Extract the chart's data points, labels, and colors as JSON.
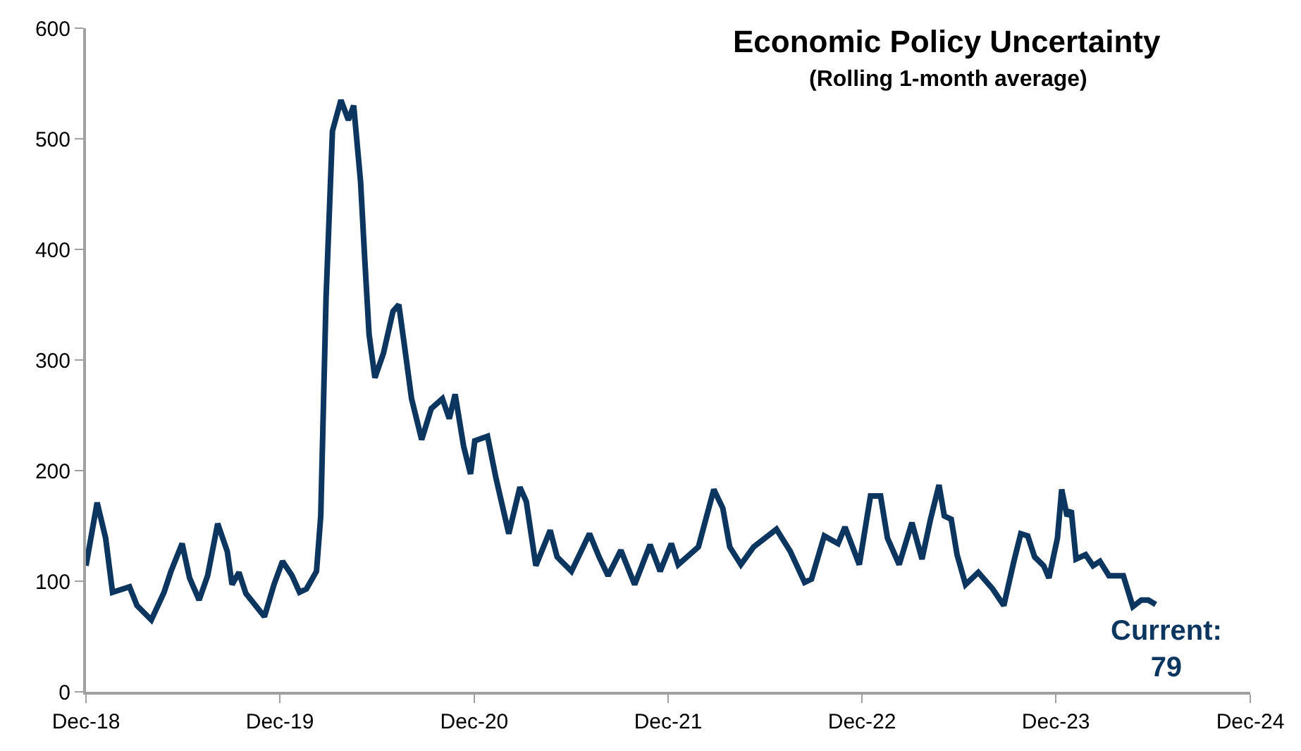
{
  "chart_data": {
    "type": "line",
    "title": "Economic Policy Uncertainty",
    "subtitle": "(Rolling 1-month average)",
    "x": [
      "2018-12-01",
      "2018-12-22",
      "2019-01-07",
      "2019-01-20",
      "2019-02-21",
      "2019-03-07",
      "2019-04-03",
      "2019-04-27",
      "2019-05-10",
      "2019-05-31",
      "2019-06-14",
      "2019-07-02",
      "2019-07-18",
      "2019-08-06",
      "2019-08-24",
      "2019-09-02",
      "2019-09-15",
      "2019-09-28",
      "2019-11-02",
      "2019-11-20",
      "2019-12-06",
      "2019-12-24",
      "2020-01-07",
      "2020-01-20",
      "2020-02-08",
      "2020-02-16",
      "2020-02-26",
      "2020-03-09",
      "2020-03-25",
      "2020-04-08",
      "2020-04-18",
      "2020-05-01",
      "2020-05-09",
      "2020-05-17",
      "2020-05-28",
      "2020-06-13",
      "2020-07-01",
      "2020-07-12",
      "2020-07-22",
      "2020-08-05",
      "2020-08-24",
      "2020-09-11",
      "2020-10-02",
      "2020-10-15",
      "2020-10-26",
      "2020-11-11",
      "2020-11-24",
      "2020-12-02",
      "2020-12-26",
      "2021-01-11",
      "2021-02-04",
      "2021-02-25",
      "2021-03-09",
      "2021-03-27",
      "2021-04-23",
      "2021-05-06",
      "2021-06-02",
      "2021-07-06",
      "2021-07-24",
      "2021-08-10",
      "2021-09-03",
      "2021-09-29",
      "2021-10-28",
      "2021-11-16",
      "2021-12-07",
      "2021-12-20",
      "2022-01-27",
      "2022-02-25",
      "2022-03-14",
      "2022-03-27",
      "2022-04-17",
      "2022-05-11",
      "2022-06-23",
      "2022-07-19",
      "2022-08-15",
      "2022-08-28",
      "2022-09-21",
      "2022-10-17",
      "2022-10-30",
      "2022-11-26",
      "2022-12-17",
      "2023-01-05",
      "2023-01-18",
      "2023-02-09",
      "2023-03-05",
      "2023-03-24",
      "2023-04-09",
      "2023-04-25",
      "2023-05-05",
      "2023-05-18",
      "2023-05-29",
      "2023-06-14",
      "2023-07-08",
      "2023-08-04",
      "2023-08-25",
      "2023-09-13",
      "2023-09-26",
      "2023-10-09",
      "2023-10-22",
      "2023-11-08",
      "2023-11-18",
      "2023-12-04",
      "2023-12-12",
      "2023-12-22",
      "2023-12-30",
      "2024-01-08",
      "2024-01-26",
      "2024-02-09",
      "2024-02-22",
      "2024-03-10",
      "2024-04-06",
      "2024-04-24",
      "2024-05-10",
      "2024-05-23",
      "2024-06-06"
    ],
    "series": [
      {
        "color": "#0c365f",
        "values": [
          114,
          171,
          139,
          90,
          95,
          78,
          65,
          90,
          109,
          134,
          103,
          83,
          105,
          152,
          127,
          97,
          108,
          89,
          68,
          97,
          118,
          105,
          90,
          93,
          109,
          159,
          356,
          507,
          535,
          517,
          530,
          461,
          390,
          323,
          284,
          306,
          344,
          350,
          315,
          265,
          228,
          256,
          265,
          247,
          269,
          222,
          197,
          227,
          231,
          193,
          143,
          185,
          172,
          114,
          146,
          122,
          109,
          143,
          122,
          105,
          128,
          97,
          133,
          109,
          134,
          115,
          131,
          183,
          166,
          131,
          115,
          131,
          147,
          127,
          99,
          102,
          141,
          134,
          149,
          115,
          177,
          177,
          139,
          115,
          153,
          120,
          156,
          187,
          159,
          156,
          124,
          97,
          108,
          93,
          78,
          118,
          143,
          141,
          122,
          114,
          103,
          139,
          183,
          159,
          164,
          120,
          124,
          114,
          118,
          105,
          105,
          77,
          83,
          83,
          79
        ]
      }
    ],
    "xlim": [
      "2018-12-01",
      "2024-12-01"
    ],
    "xticks": [
      {
        "value": "2018-12-01",
        "label": "Dec-18"
      },
      {
        "value": "2019-12-01",
        "label": "Dec-19"
      },
      {
        "value": "2020-12-01",
        "label": "Dec-20"
      },
      {
        "value": "2021-12-01",
        "label": "Dec-21"
      },
      {
        "value": "2022-12-01",
        "label": "Dec-22"
      },
      {
        "value": "2023-12-01",
        "label": "Dec-23"
      },
      {
        "value": "2024-12-01",
        "label": "Dec-24"
      }
    ],
    "ylim": [
      0,
      600
    ],
    "yticks": [
      0,
      100,
      200,
      300,
      400,
      500,
      600
    ],
    "annotations": [
      {
        "text": "Current:\n79",
        "x": "2024-06-06",
        "y": 79
      }
    ],
    "marker": "none",
    "line_style": "solid"
  }
}
